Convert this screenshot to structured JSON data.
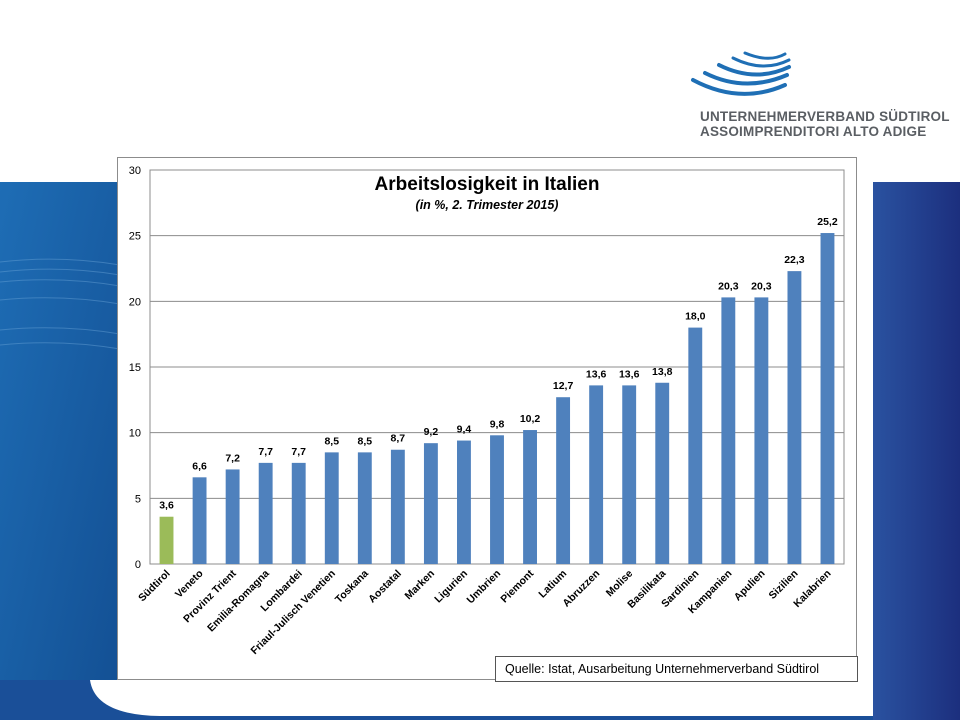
{
  "slide": {
    "logo_line1": "UNTERNEHMERVERBAND SÜDTIROL",
    "logo_line2": "ASSOIMPRENDITORI ALTO ADIGE",
    "colors": {
      "left_band": "#1a5fa8",
      "right_band": "#1f3f8f",
      "logo_blue": "#1f6fb5"
    }
  },
  "chart_data": {
    "type": "bar",
    "title": "Arbeitslosigkeit in Italien",
    "subtitle": "(in %, 2. Trimester 2015)",
    "categories": [
      "Südtirol",
      "Veneto",
      "Provinz Trient",
      "Emilia-Romagna",
      "Lombardei",
      "Friaul-Julisch Venetien",
      "Toskana",
      "Aostatal",
      "Marken",
      "Ligurien",
      "Umbrien",
      "Piemont",
      "Latium",
      "Abruzzen",
      "Molise",
      "Basilikata",
      "Sardinien",
      "Kampanien",
      "Apulien",
      "Sizilien",
      "Kalabrien"
    ],
    "values": [
      3.6,
      6.6,
      7.2,
      7.7,
      7.7,
      8.5,
      8.5,
      8.7,
      9.2,
      9.4,
      9.8,
      10.2,
      12.7,
      13.6,
      13.6,
      13.8,
      18.0,
      20.3,
      20.3,
      22.3,
      25.2
    ],
    "data_labels": [
      "3,6",
      "6,6",
      "7,2",
      "7,7",
      "7,7",
      "8,5",
      "8,5",
      "8,7",
      "9,2",
      "9,4",
      "9,8",
      "10,2",
      "12,7",
      "13,6",
      "13,6",
      "13,8",
      "18,0",
      "20,3",
      "20,3",
      "22,3",
      "25,2"
    ],
    "ylim": [
      0,
      30
    ],
    "yticks": [
      0,
      5,
      10,
      15,
      20,
      25,
      30
    ],
    "ytick_labels": [
      "0",
      "5",
      "10",
      "15",
      "20",
      "25",
      "30"
    ],
    "grid": true,
    "highlight_index": 0,
    "bar_color": "#4f81bd",
    "highlight_color": "#9bbb59",
    "xlabel": "",
    "ylabel": ""
  },
  "source": "Quelle: Istat, Ausarbeitung Unternehmerverband Südtirol"
}
